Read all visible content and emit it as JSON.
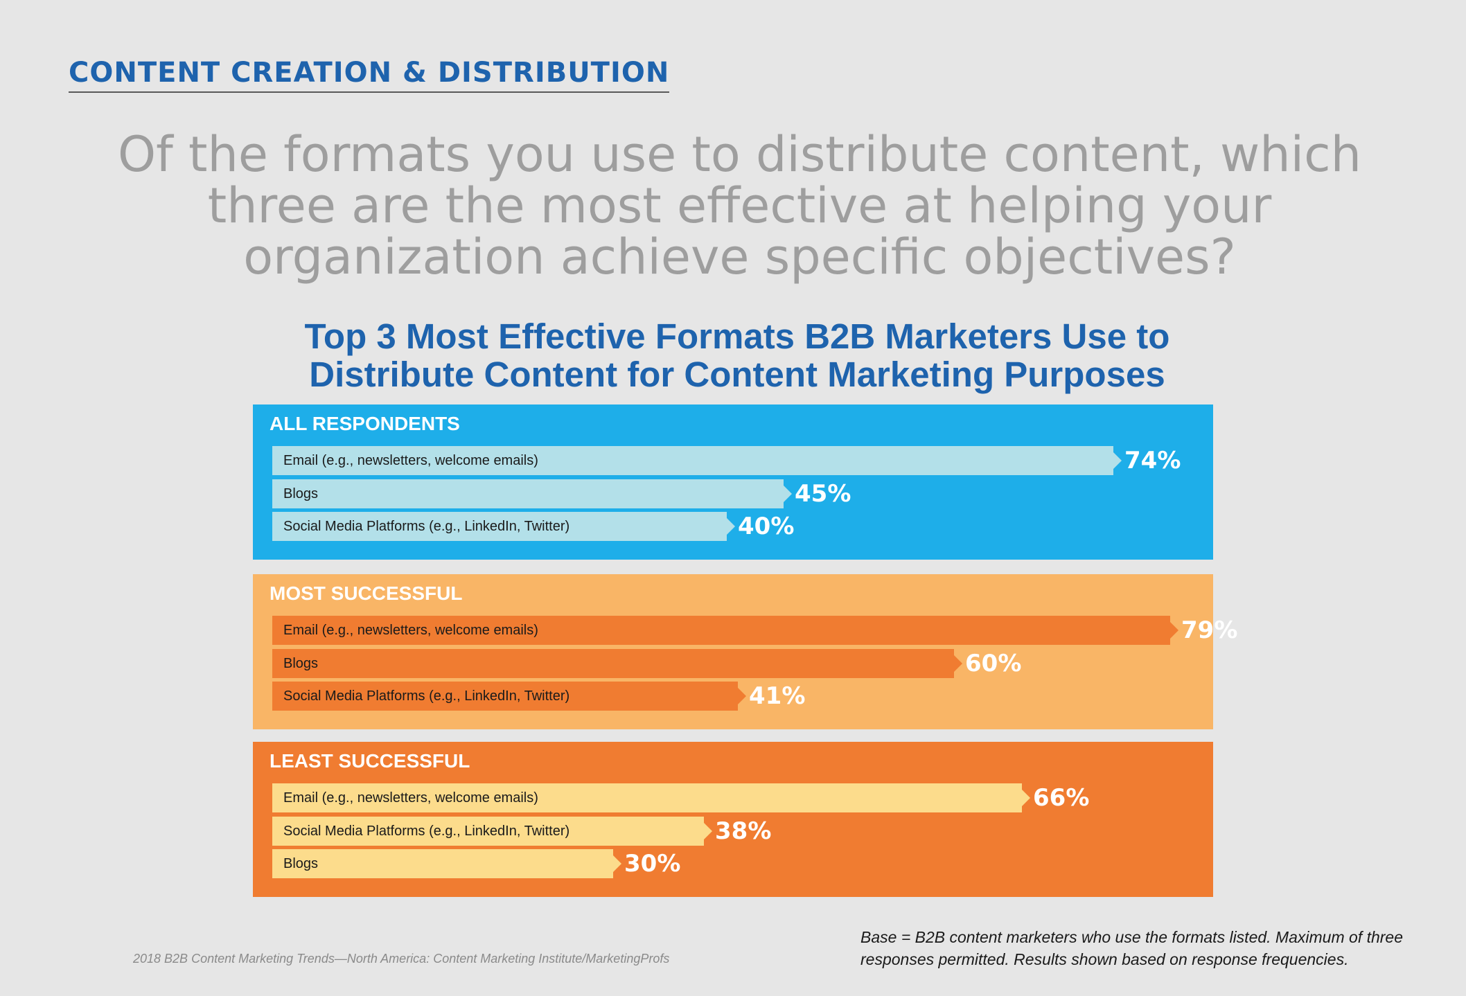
{
  "section_header": "CONTENT CREATION & DISTRIBUTION",
  "question": "Of the formats you use to distribute content, which three are the most effective at helping your organization achieve specific objectives?",
  "chart_data": {
    "type": "bar",
    "title": "Top 3 Most Effective Formats B2B Marketers Use to Distribute Content for Content Marketing Purposes",
    "unit": "%",
    "groups": [
      {
        "name": "ALL RESPONDENTS",
        "panel_color": "#1eaee9",
        "bar_color": "#b3e0e9",
        "bars": [
          {
            "label": "Email (e.g., newsletters, welcome emails)",
            "value": 74
          },
          {
            "label": "Blogs",
            "value": 45
          },
          {
            "label": "Social Media Platforms (e.g., LinkedIn, Twitter)",
            "value": 40
          }
        ]
      },
      {
        "name": "MOST SUCCESSFUL",
        "panel_color": "#f9b566",
        "bar_color": "#f07c31",
        "bars": [
          {
            "label": "Email (e.g., newsletters, welcome emails)",
            "value": 79
          },
          {
            "label": "Blogs",
            "value": 60
          },
          {
            "label": "Social Media Platforms (e.g., LinkedIn, Twitter)",
            "value": 41
          }
        ]
      },
      {
        "name": "LEAST SUCCESSFUL",
        "panel_color": "#f07c31",
        "bar_color": "#fcdc8c",
        "bars": [
          {
            "label": "Email (e.g., newsletters, welcome emails)",
            "value": 66
          },
          {
            "label": "Social Media Platforms (e.g., LinkedIn, Twitter)",
            "value": 38
          },
          {
            "label": "Blogs",
            "value": 30
          }
        ]
      }
    ]
  },
  "footer": {
    "source": "2018 B2B Content Marketing Trends—North America: Content Marketing Institute/MarketingProfs",
    "base_note": "Base = B2B content marketers who use the formats listed. Maximum of three responses permitted. Results shown based on response frequencies."
  }
}
